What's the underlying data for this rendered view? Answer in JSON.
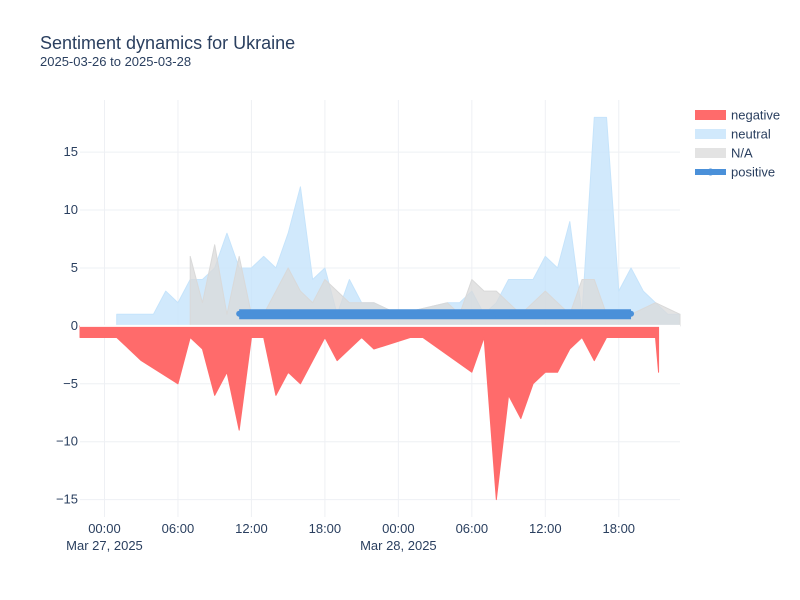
{
  "chart_data": {
    "type": "area",
    "title": "Sentiment dynamics for Ukraine",
    "subtitle": "2025-03-26 to 2025-03-28",
    "xlabel": "",
    "ylabel": "",
    "x_range": [
      "2025-03-26T22:00",
      "2025-03-28T23:00"
    ],
    "ylim": [
      -16.5,
      19.5
    ],
    "y_ticks": [
      -15,
      -10,
      -5,
      0,
      5,
      10,
      15
    ],
    "x_ticks": [
      {
        "t": "2025-03-27T00:00",
        "label": "00:00",
        "date": "Mar 27, 2025"
      },
      {
        "t": "2025-03-27T06:00",
        "label": "06:00",
        "date": ""
      },
      {
        "t": "2025-03-27T12:00",
        "label": "12:00",
        "date": ""
      },
      {
        "t": "2025-03-27T18:00",
        "label": "18:00",
        "date": ""
      },
      {
        "t": "2025-03-28T00:00",
        "label": "00:00",
        "date": "Mar 28, 2025"
      },
      {
        "t": "2025-03-28T06:00",
        "label": "06:00",
        "date": ""
      },
      {
        "t": "2025-03-28T12:00",
        "label": "12:00",
        "date": ""
      },
      {
        "t": "2025-03-28T18:00",
        "label": "18:00",
        "date": ""
      }
    ],
    "grid": true,
    "legend_position": "top-right",
    "series": [
      {
        "name": "negative",
        "color": "#ff6b6b",
        "style": "area",
        "points": [
          [
            "2025-03-26T22:00",
            -1
          ],
          [
            "2025-03-27T01:00",
            -1
          ],
          [
            "2025-03-27T03:00",
            -3
          ],
          [
            "2025-03-27T06:00",
            -5
          ],
          [
            "2025-03-27T07:00",
            -1
          ],
          [
            "2025-03-27T08:00",
            -2
          ],
          [
            "2025-03-27T09:00",
            -6
          ],
          [
            "2025-03-27T10:00",
            -4
          ],
          [
            "2025-03-27T11:00",
            -9
          ],
          [
            "2025-03-27T12:00",
            -1
          ],
          [
            "2025-03-27T13:00",
            -1
          ],
          [
            "2025-03-27T14:00",
            -6
          ],
          [
            "2025-03-27T15:00",
            -4
          ],
          [
            "2025-03-27T16:00",
            -5
          ],
          [
            "2025-03-27T18:00",
            -1
          ],
          [
            "2025-03-27T19:00",
            -3
          ],
          [
            "2025-03-27T21:00",
            -1
          ],
          [
            "2025-03-27T22:00",
            -2
          ],
          [
            "2025-03-28T01:00",
            -1
          ],
          [
            "2025-03-28T02:00",
            -1
          ],
          [
            "2025-03-28T06:00",
            -4
          ],
          [
            "2025-03-28T07:00",
            -1
          ],
          [
            "2025-03-28T08:00",
            -15
          ],
          [
            "2025-03-28T09:00",
            -6
          ],
          [
            "2025-03-28T10:00",
            -8
          ],
          [
            "2025-03-28T11:00",
            -5
          ],
          [
            "2025-03-28T12:00",
            -4
          ],
          [
            "2025-03-28T13:00",
            -4
          ],
          [
            "2025-03-28T14:00",
            -2
          ],
          [
            "2025-03-28T15:00",
            -1
          ],
          [
            "2025-03-28T16:00",
            -3
          ],
          [
            "2025-03-28T17:00",
            -1
          ],
          [
            "2025-03-28T21:00",
            -1
          ],
          [
            "2025-03-28T21:15",
            -4
          ]
        ]
      },
      {
        "name": "neutral",
        "color": "#c6e4fb",
        "style": "area",
        "points": [
          [
            "2025-03-27T01:00",
            1
          ],
          [
            "2025-03-27T04:00",
            1
          ],
          [
            "2025-03-27T05:00",
            3
          ],
          [
            "2025-03-27T06:00",
            2
          ],
          [
            "2025-03-27T07:00",
            4
          ],
          [
            "2025-03-27T08:00",
            4
          ],
          [
            "2025-03-27T09:00",
            5
          ],
          [
            "2025-03-27T10:00",
            8
          ],
          [
            "2025-03-27T11:00",
            5
          ],
          [
            "2025-03-27T12:00",
            5
          ],
          [
            "2025-03-27T13:00",
            6
          ],
          [
            "2025-03-27T14:00",
            5
          ],
          [
            "2025-03-27T15:00",
            8
          ],
          [
            "2025-03-27T16:00",
            12
          ],
          [
            "2025-03-27T17:00",
            4
          ],
          [
            "2025-03-27T18:00",
            5
          ],
          [
            "2025-03-27T19:00",
            1
          ],
          [
            "2025-03-27T20:00",
            4
          ],
          [
            "2025-03-27T21:00",
            2
          ],
          [
            "2025-03-27T22:00",
            2
          ],
          [
            "2025-03-28T00:00",
            1
          ],
          [
            "2025-03-28T04:00",
            2
          ],
          [
            "2025-03-28T05:00",
            2
          ],
          [
            "2025-03-28T06:00",
            3
          ],
          [
            "2025-03-28T07:00",
            1
          ],
          [
            "2025-03-28T08:00",
            2
          ],
          [
            "2025-03-28T09:00",
            4
          ],
          [
            "2025-03-28T10:00",
            4
          ],
          [
            "2025-03-28T11:00",
            4
          ],
          [
            "2025-03-28T12:00",
            6
          ],
          [
            "2025-03-28T13:00",
            5
          ],
          [
            "2025-03-28T14:00",
            9
          ],
          [
            "2025-03-28T15:00",
            1
          ],
          [
            "2025-03-28T16:00",
            18
          ],
          [
            "2025-03-28T17:00",
            18
          ],
          [
            "2025-03-28T18:00",
            3
          ],
          [
            "2025-03-28T19:00",
            5
          ],
          [
            "2025-03-28T20:00",
            3
          ],
          [
            "2025-03-28T21:00",
            2
          ],
          [
            "2025-03-28T22:00",
            1
          ],
          [
            "2025-03-28T23:00",
            1
          ]
        ]
      },
      {
        "name": "N/A",
        "color": "#d9d9d9",
        "style": "area",
        "points": [
          [
            "2025-03-27T07:00",
            6
          ],
          [
            "2025-03-27T08:00",
            2
          ],
          [
            "2025-03-27T09:00",
            7
          ],
          [
            "2025-03-27T10:00",
            1
          ],
          [
            "2025-03-27T11:00",
            6
          ],
          [
            "2025-03-27T12:00",
            1
          ],
          [
            "2025-03-27T13:00",
            1
          ],
          [
            "2025-03-27T15:00",
            5
          ],
          [
            "2025-03-27T16:00",
            3
          ],
          [
            "2025-03-27T17:00",
            2
          ],
          [
            "2025-03-27T18:00",
            4
          ],
          [
            "2025-03-27T20:00",
            2
          ],
          [
            "2025-03-27T22:00",
            2
          ],
          [
            "2025-03-28T00:00",
            1
          ],
          [
            "2025-03-28T04:00",
            2
          ],
          [
            "2025-03-28T05:00",
            1
          ],
          [
            "2025-03-28T06:00",
            4
          ],
          [
            "2025-03-28T07:00",
            3
          ],
          [
            "2025-03-28T08:00",
            3
          ],
          [
            "2025-03-28T09:00",
            2
          ],
          [
            "2025-03-28T10:00",
            1
          ],
          [
            "2025-03-28T12:00",
            3
          ],
          [
            "2025-03-28T14:00",
            1
          ],
          [
            "2025-03-28T15:00",
            4
          ],
          [
            "2025-03-28T16:00",
            4
          ],
          [
            "2025-03-28T17:00",
            1
          ],
          [
            "2025-03-28T19:00",
            1
          ],
          [
            "2025-03-28T21:00",
            2
          ],
          [
            "2025-03-28T23:00",
            1
          ]
        ]
      },
      {
        "name": "positive",
        "color": "#4a90d9",
        "style": "line-markers",
        "points": [
          [
            "2025-03-27T11:00",
            1
          ],
          [
            "2025-03-27T15:00",
            1
          ],
          [
            "2025-03-27T17:00",
            1
          ],
          [
            "2025-03-27T19:00",
            1
          ],
          [
            "2025-03-28T08:00",
            1
          ],
          [
            "2025-03-28T09:00",
            1
          ],
          [
            "2025-03-28T14:00",
            1
          ],
          [
            "2025-03-28T17:00",
            1
          ],
          [
            "2025-03-28T19:00",
            1
          ]
        ]
      }
    ]
  }
}
